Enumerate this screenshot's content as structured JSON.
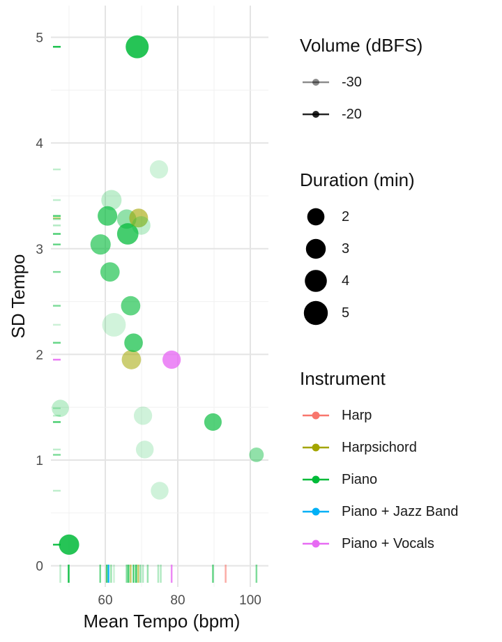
{
  "chart_data": {
    "type": "scatter",
    "xlabel": "Mean Tempo (bpm)",
    "ylabel": "SD Tempo",
    "xlim": [
      45,
      105
    ],
    "ylim": [
      -0.2,
      5.3
    ],
    "x_ticks": [
      60,
      80,
      100
    ],
    "y_ticks": [
      0,
      1,
      2,
      3,
      4,
      5
    ],
    "grid": true,
    "rug": true,
    "legends": {
      "volume": {
        "title": "Volume (dBFS)",
        "entries": [
          {
            "label": "-30",
            "alpha": 0.45
          },
          {
            "label": "-20",
            "alpha": 0.85
          }
        ]
      },
      "duration": {
        "title": "Duration (min)",
        "entries": [
          {
            "label": "2",
            "value": 2
          },
          {
            "label": "3",
            "value": 3
          },
          {
            "label": "4",
            "value": 4
          },
          {
            "label": "5",
            "value": 5
          }
        ]
      },
      "instrument": {
        "title": "Instrument",
        "entries": [
          {
            "label": "Harp",
            "color": "#F8766D"
          },
          {
            "label": "Harpsichord",
            "color": "#A3A500"
          },
          {
            "label": "Piano",
            "color": "#00BA38"
          },
          {
            "label": "Piano + Jazz Band",
            "color": "#00B0F6"
          },
          {
            "label": "Piano + Vocals",
            "color": "#E76BF3"
          }
        ]
      }
    },
    "points": [
      {
        "x": 68.8,
        "y": 4.91,
        "duration": 4.5,
        "volume": -20,
        "instrument": "Piano"
      },
      {
        "x": 74.8,
        "y": 3.75,
        "duration": 2.4,
        "volume": -32,
        "instrument": "Piano"
      },
      {
        "x": 61.7,
        "y": 3.46,
        "duration": 3.2,
        "volume": -30,
        "instrument": "Piano"
      },
      {
        "x": 60.6,
        "y": 3.31,
        "duration": 2.9,
        "volume": -23,
        "instrument": "Piano"
      },
      {
        "x": 65.9,
        "y": 3.28,
        "duration": 2.8,
        "volume": -27,
        "instrument": "Piano"
      },
      {
        "x": 69.2,
        "y": 3.29,
        "duration": 2.6,
        "volume": -24,
        "instrument": "Harpsichord"
      },
      {
        "x": 69.9,
        "y": 3.22,
        "duration": 2.5,
        "volume": -30,
        "instrument": "Piano"
      },
      {
        "x": 66.2,
        "y": 3.14,
        "duration": 3.7,
        "volume": -22,
        "instrument": "Piano"
      },
      {
        "x": 58.7,
        "y": 3.04,
        "duration": 3.2,
        "volume": -24,
        "instrument": "Piano"
      },
      {
        "x": 61.3,
        "y": 2.78,
        "duration": 2.8,
        "volume": -24,
        "instrument": "Piano"
      },
      {
        "x": 67.0,
        "y": 2.46,
        "duration": 2.8,
        "volume": -24,
        "instrument": "Piano"
      },
      {
        "x": 62.4,
        "y": 2.28,
        "duration": 4.8,
        "volume": -33,
        "instrument": "Piano"
      },
      {
        "x": 67.8,
        "y": 2.11,
        "duration": 2.5,
        "volume": -23,
        "instrument": "Piano"
      },
      {
        "x": 67.2,
        "y": 1.95,
        "duration": 2.8,
        "volume": -25,
        "instrument": "Harpsichord"
      },
      {
        "x": 78.3,
        "y": 1.95,
        "duration": 2.4,
        "volume": -21,
        "instrument": "Piano + Vocals"
      },
      {
        "x": 47.6,
        "y": 1.49,
        "duration": 2.0,
        "volume": -30,
        "instrument": "Piano"
      },
      {
        "x": 70.4,
        "y": 1.42,
        "duration": 2.4,
        "volume": -31,
        "instrument": "Piano"
      },
      {
        "x": 89.7,
        "y": 1.36,
        "duration": 2.1,
        "volume": -23,
        "instrument": "Piano"
      },
      {
        "x": 70.9,
        "y": 1.1,
        "duration": 2.2,
        "volume": -31,
        "instrument": "Piano"
      },
      {
        "x": 101.7,
        "y": 1.05,
        "duration": 1.2,
        "volume": -27,
        "instrument": "Piano"
      },
      {
        "x": 75.0,
        "y": 0.71,
        "duration": 2.2,
        "volume": -31,
        "instrument": "Piano"
      },
      {
        "x": 50.0,
        "y": 0.2,
        "duration": 3.2,
        "volume": -20,
        "instrument": "Piano"
      }
    ],
    "rug_x": [
      {
        "x": 47.6,
        "instrument": "Piano",
        "alpha": 0.25
      },
      {
        "x": 49.9,
        "instrument": "Piano",
        "alpha": 0.9
      },
      {
        "x": 58.6,
        "instrument": "Piano",
        "alpha": 0.55
      },
      {
        "x": 60.4,
        "instrument": "Piano",
        "alpha": 0.7
      },
      {
        "x": 60.9,
        "instrument": "Piano + Jazz Band",
        "alpha": 0.9
      },
      {
        "x": 61.6,
        "instrument": "Piano",
        "alpha": 0.4
      },
      {
        "x": 62.4,
        "instrument": "Piano",
        "alpha": 0.2
      },
      {
        "x": 65.9,
        "instrument": "Piano",
        "alpha": 0.5
      },
      {
        "x": 66.4,
        "instrument": "Piano",
        "alpha": 0.7
      },
      {
        "x": 67.0,
        "instrument": "Harpsichord",
        "alpha": 0.6
      },
      {
        "x": 67.8,
        "instrument": "Piano",
        "alpha": 0.7
      },
      {
        "x": 68.5,
        "instrument": "Piano",
        "alpha": 0.8
      },
      {
        "x": 69.1,
        "instrument": "Harpsichord",
        "alpha": 0.6
      },
      {
        "x": 69.7,
        "instrument": "Piano",
        "alpha": 0.4
      },
      {
        "x": 70.4,
        "instrument": "Piano",
        "alpha": 0.3
      },
      {
        "x": 71.7,
        "instrument": "Piano",
        "alpha": 0.4
      },
      {
        "x": 74.6,
        "instrument": "Piano",
        "alpha": 0.3
      },
      {
        "x": 75.3,
        "instrument": "Piano",
        "alpha": 0.3
      },
      {
        "x": 78.3,
        "instrument": "Piano + Vocals",
        "alpha": 0.8
      },
      {
        "x": 89.7,
        "instrument": "Piano",
        "alpha": 0.6
      },
      {
        "x": 93.2,
        "instrument": "Harp",
        "alpha": 0.6
      },
      {
        "x": 101.7,
        "instrument": "Piano",
        "alpha": 0.5
      }
    ],
    "rug_y": [
      {
        "y": 4.91,
        "instrument": "Piano",
        "alpha": 0.9
      },
      {
        "y": 3.75,
        "instrument": "Piano",
        "alpha": 0.25
      },
      {
        "y": 3.46,
        "instrument": "Piano",
        "alpha": 0.25
      },
      {
        "y": 3.31,
        "instrument": "Piano",
        "alpha": 0.7
      },
      {
        "y": 3.29,
        "instrument": "Harpsichord",
        "alpha": 0.5
      },
      {
        "y": 3.28,
        "instrument": "Piano",
        "alpha": 0.4
      },
      {
        "y": 3.22,
        "instrument": "Piano",
        "alpha": 0.3
      },
      {
        "y": 3.14,
        "instrument": "Piano",
        "alpha": 0.7
      },
      {
        "y": 3.04,
        "instrument": "Piano",
        "alpha": 0.6
      },
      {
        "y": 2.78,
        "instrument": "Piano",
        "alpha": 0.5
      },
      {
        "y": 2.46,
        "instrument": "Piano",
        "alpha": 0.5
      },
      {
        "y": 2.28,
        "instrument": "Piano",
        "alpha": 0.2
      },
      {
        "y": 2.11,
        "instrument": "Piano",
        "alpha": 0.6
      },
      {
        "y": 1.95,
        "instrument": "Piano + Vocals",
        "alpha": 0.9
      },
      {
        "y": 1.49,
        "instrument": "Piano",
        "alpha": 0.25
      },
      {
        "y": 1.42,
        "instrument": "Piano",
        "alpha": 0.25
      },
      {
        "y": 1.36,
        "instrument": "Piano",
        "alpha": 0.7
      },
      {
        "y": 1.1,
        "instrument": "Piano",
        "alpha": 0.25
      },
      {
        "y": 1.05,
        "instrument": "Piano",
        "alpha": 0.5
      },
      {
        "y": 0.71,
        "instrument": "Piano",
        "alpha": 0.25
      },
      {
        "y": 0.2,
        "instrument": "Piano",
        "alpha": 0.9
      }
    ]
  }
}
